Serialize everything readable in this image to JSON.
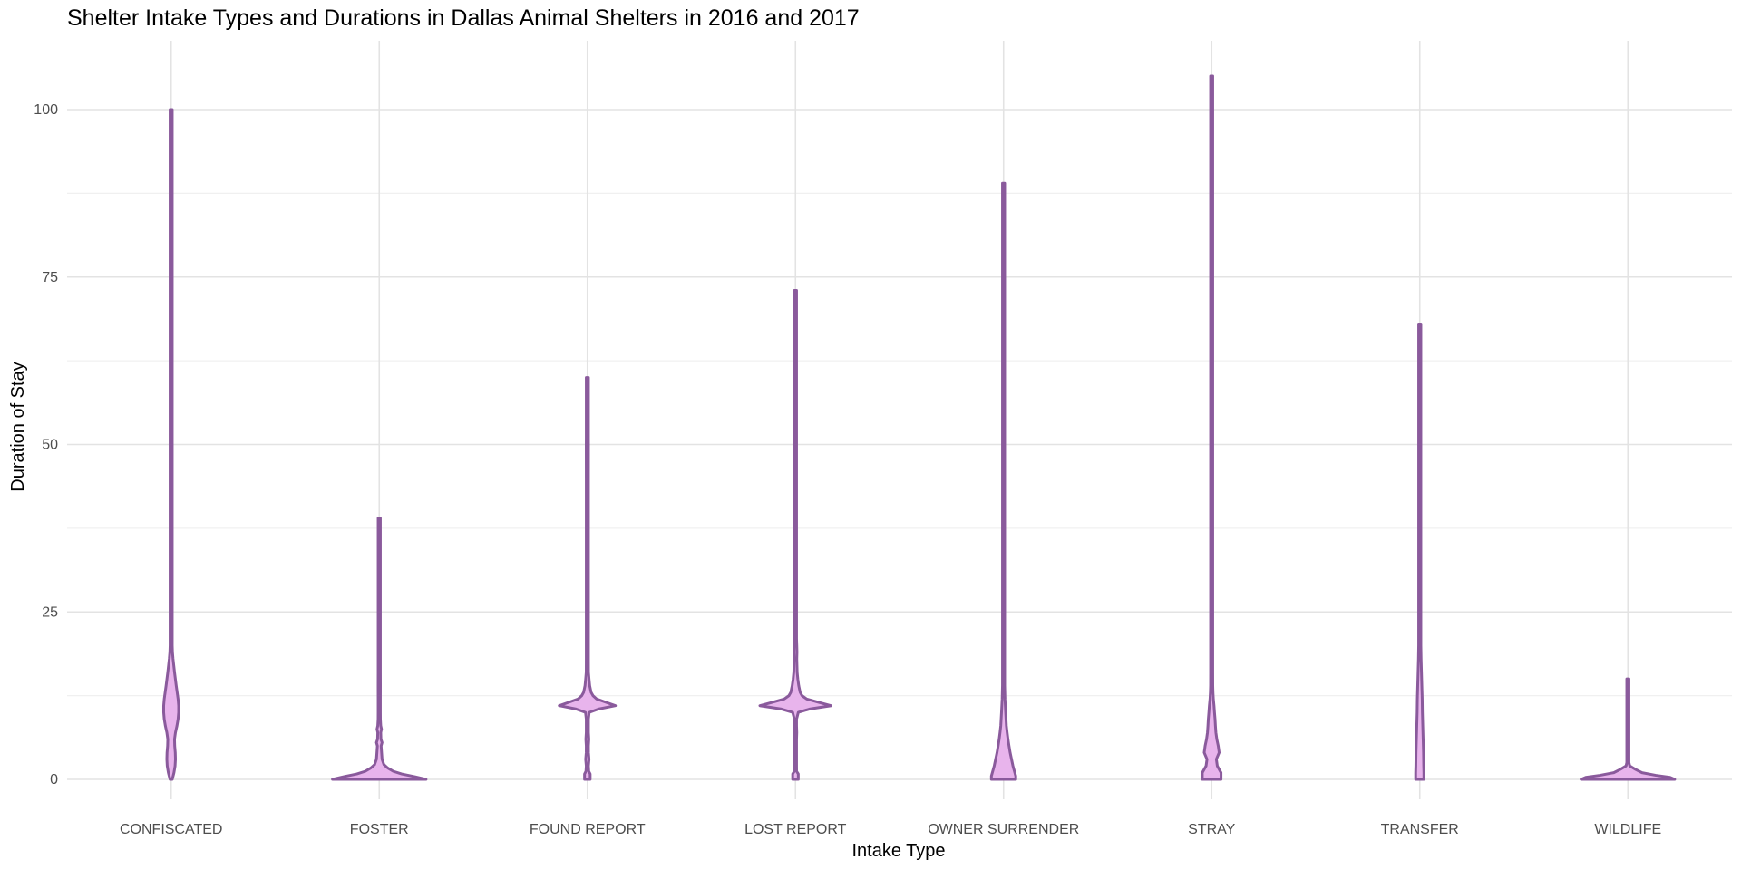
{
  "chart_data": {
    "type": "violin",
    "title": "Shelter Intake Types and Durations in Dallas Animal Shelters in 2016 and 2017",
    "xlabel": "Intake Type",
    "ylabel": "Duration of Stay",
    "categories": [
      "CONFISCATED",
      "FOSTER",
      "FOUND REPORT",
      "LOST REPORT",
      "OWNER SURRENDER",
      "STRAY",
      "TRANSFER",
      "WILDLIFE"
    ],
    "yticks": [
      0,
      25,
      50,
      75,
      100
    ],
    "ytick_labels": [
      "0",
      "25",
      "50",
      "75",
      "100"
    ],
    "ylim": [
      -6,
      110
    ],
    "grid": true,
    "legend": "none",
    "colors": {
      "fill": "#e8b4ec",
      "outline": "#8a5a9c"
    },
    "series": [
      {
        "category": "CONFISCATED",
        "max": 100,
        "profile": [
          [
            0,
            0.012
          ],
          [
            1,
            0.03
          ],
          [
            2,
            0.042
          ],
          [
            3,
            0.046
          ],
          [
            4,
            0.044
          ],
          [
            5,
            0.038
          ],
          [
            6,
            0.036
          ],
          [
            7,
            0.046
          ],
          [
            8,
            0.062
          ],
          [
            9,
            0.074
          ],
          [
            10,
            0.08
          ],
          [
            11,
            0.08
          ],
          [
            12,
            0.074
          ],
          [
            13,
            0.064
          ],
          [
            14,
            0.054
          ],
          [
            15,
            0.045
          ],
          [
            16,
            0.036
          ],
          [
            17,
            0.028
          ],
          [
            18,
            0.02
          ],
          [
            19,
            0.014
          ],
          [
            20,
            0.01
          ],
          [
            22,
            0.007
          ],
          [
            25,
            0.005
          ],
          [
            30,
            0.004
          ],
          [
            40,
            0.003
          ],
          [
            60,
            0.003
          ],
          [
            80,
            0.003
          ],
          [
            100,
            0.003
          ]
        ]
      },
      {
        "category": "FOSTER",
        "max": 39,
        "profile": [
          [
            0,
            0.5
          ],
          [
            0.4,
            0.38
          ],
          [
            0.8,
            0.24
          ],
          [
            1.2,
            0.15
          ],
          [
            1.7,
            0.09
          ],
          [
            2.2,
            0.05
          ],
          [
            3,
            0.03
          ],
          [
            4,
            0.025
          ],
          [
            5,
            0.02
          ],
          [
            5.5,
            0.03
          ],
          [
            6,
            0.018
          ],
          [
            7,
            0.016
          ],
          [
            7.5,
            0.024
          ],
          [
            8,
            0.016
          ],
          [
            9,
            0.012
          ],
          [
            10,
            0.01
          ],
          [
            12,
            0.008
          ],
          [
            14,
            0.012
          ],
          [
            16,
            0.006
          ],
          [
            20,
            0.005
          ],
          [
            25,
            0.005
          ],
          [
            30,
            0.004
          ],
          [
            35,
            0.004
          ],
          [
            39,
            0.004
          ]
        ]
      },
      {
        "category": "FOUND REPORT",
        "max": 60,
        "profile": [
          [
            0,
            0.03
          ],
          [
            0.8,
            0.03
          ],
          [
            1.2,
            0.015
          ],
          [
            2,
            0.01
          ],
          [
            3,
            0.018
          ],
          [
            4,
            0.012
          ],
          [
            5,
            0.008
          ],
          [
            6,
            0.016
          ],
          [
            7,
            0.01
          ],
          [
            8,
            0.008
          ],
          [
            9,
            0.01
          ],
          [
            10,
            0.02
          ],
          [
            10.5,
            0.12
          ],
          [
            11,
            0.3
          ],
          [
            11.5,
            0.2
          ],
          [
            12,
            0.1
          ],
          [
            12.5,
            0.06
          ],
          [
            13,
            0.04
          ],
          [
            14,
            0.025
          ],
          [
            15,
            0.018
          ],
          [
            16,
            0.012
          ],
          [
            18,
            0.009
          ],
          [
            20,
            0.008
          ],
          [
            22,
            0.006
          ],
          [
            25,
            0.006
          ],
          [
            30,
            0.005
          ],
          [
            40,
            0.005
          ],
          [
            45,
            0.008
          ],
          [
            50,
            0.012
          ],
          [
            51,
            0.004
          ],
          [
            55,
            0.003
          ],
          [
            60,
            0.003
          ]
        ]
      },
      {
        "category": "LOST REPORT",
        "max": 73,
        "profile": [
          [
            0,
            0.03
          ],
          [
            0.8,
            0.03
          ],
          [
            1.2,
            0.012
          ],
          [
            2,
            0.008
          ],
          [
            3,
            0.01
          ],
          [
            4,
            0.008
          ],
          [
            5,
            0.008
          ],
          [
            6,
            0.008
          ],
          [
            7,
            0.014
          ],
          [
            8,
            0.008
          ],
          [
            9,
            0.01
          ],
          [
            10,
            0.03
          ],
          [
            10.5,
            0.15
          ],
          [
            11,
            0.38
          ],
          [
            11.5,
            0.25
          ],
          [
            12,
            0.12
          ],
          [
            12.5,
            0.07
          ],
          [
            13,
            0.05
          ],
          [
            14,
            0.035
          ],
          [
            15,
            0.025
          ],
          [
            16,
            0.018
          ],
          [
            17,
            0.016
          ],
          [
            18,
            0.014
          ],
          [
            19,
            0.016
          ],
          [
            20,
            0.014
          ],
          [
            21,
            0.01
          ],
          [
            23,
            0.008
          ],
          [
            26,
            0.006
          ],
          [
            30,
            0.005
          ],
          [
            40,
            0.005
          ],
          [
            50,
            0.006
          ],
          [
            60,
            0.004
          ],
          [
            73,
            0.003
          ]
        ]
      },
      {
        "category": "OWNER SURRENDER",
        "max": 89,
        "profile": [
          [
            0,
            0.13
          ],
          [
            0.5,
            0.13
          ],
          [
            1,
            0.12
          ],
          [
            2,
            0.1
          ],
          [
            3,
            0.085
          ],
          [
            4,
            0.07
          ],
          [
            5,
            0.058
          ],
          [
            6,
            0.047
          ],
          [
            7,
            0.038
          ],
          [
            8,
            0.03
          ],
          [
            10,
            0.022
          ],
          [
            12,
            0.015
          ],
          [
            14,
            0.011
          ],
          [
            16,
            0.008
          ],
          [
            20,
            0.006
          ],
          [
            25,
            0.004
          ],
          [
            30,
            0.003
          ],
          [
            50,
            0.003
          ],
          [
            70,
            0.003
          ],
          [
            89,
            0.003
          ]
        ]
      },
      {
        "category": "STRAY",
        "max": 105,
        "profile": [
          [
            0,
            0.1
          ],
          [
            1,
            0.1
          ],
          [
            2,
            0.06
          ],
          [
            3,
            0.05
          ],
          [
            4,
            0.08
          ],
          [
            5,
            0.07
          ],
          [
            6,
            0.055
          ],
          [
            7,
            0.045
          ],
          [
            8,
            0.04
          ],
          [
            9,
            0.036
          ],
          [
            10,
            0.03
          ],
          [
            11,
            0.025
          ],
          [
            12,
            0.018
          ],
          [
            13,
            0.014
          ],
          [
            14,
            0.012
          ],
          [
            16,
            0.009
          ],
          [
            18,
            0.007
          ],
          [
            20,
            0.006
          ],
          [
            25,
            0.004
          ],
          [
            30,
            0.004
          ],
          [
            50,
            0.003
          ],
          [
            80,
            0.003
          ],
          [
            105,
            0.003
          ]
        ]
      },
      {
        "category": "TRANSFER",
        "max": 68,
        "profile": [
          [
            0,
            0.044
          ],
          [
            1,
            0.044
          ],
          [
            2,
            0.042
          ],
          [
            4,
            0.04
          ],
          [
            6,
            0.036
          ],
          [
            8,
            0.032
          ],
          [
            10,
            0.028
          ],
          [
            12,
            0.026
          ],
          [
            14,
            0.022
          ],
          [
            16,
            0.018
          ],
          [
            18,
            0.014
          ],
          [
            20,
            0.01
          ],
          [
            22,
            0.008
          ],
          [
            25,
            0.006
          ],
          [
            28,
            0.004
          ],
          [
            35,
            0.003
          ],
          [
            50,
            0.003
          ],
          [
            68,
            0.003
          ]
        ]
      },
      {
        "category": "WILDLIFE",
        "max": 15,
        "profile": [
          [
            0,
            0.5
          ],
          [
            0.3,
            0.45
          ],
          [
            0.6,
            0.3
          ],
          [
            1,
            0.15
          ],
          [
            1.5,
            0.08
          ],
          [
            2,
            0.02
          ],
          [
            2.5,
            0.006
          ],
          [
            4,
            0.004
          ],
          [
            6,
            0.004
          ],
          [
            8,
            0.004
          ],
          [
            10,
            0.004
          ],
          [
            12,
            0.004
          ],
          [
            14,
            0.004
          ],
          [
            15,
            0.004
          ]
        ]
      }
    ]
  }
}
